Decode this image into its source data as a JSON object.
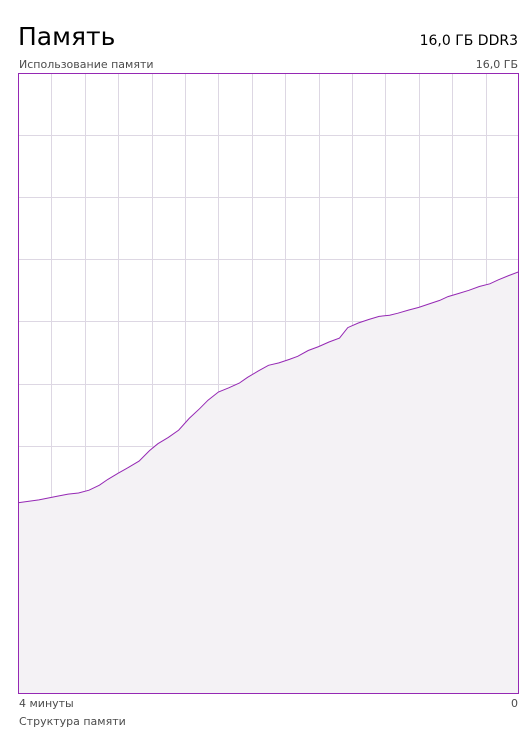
{
  "header": {
    "title": "Память",
    "spec": "16,0 ГБ DDR3"
  },
  "graph": {
    "label_top_left": "Использование памяти",
    "label_top_right": "16,0 ГБ",
    "label_bottom_left": "4 минуты",
    "label_bottom_right": "0",
    "line_color": "#9528b4",
    "fill_color": "#f4f2f5",
    "border_color": "#9528b4",
    "grid_color": "#ddd7e3"
  },
  "footer": {
    "section_label": "Структура памяти"
  },
  "chart_data": {
    "type": "area",
    "x_range": [
      240,
      0
    ],
    "ylim": [
      0,
      16
    ],
    "x_seconds_ago": [
      240,
      230,
      221,
      216,
      211,
      206,
      201,
      197,
      192,
      187,
      182,
      177,
      173,
      168,
      163,
      158,
      153,
      149,
      144,
      139,
      134,
      130,
      125,
      120,
      115,
      110,
      106,
      101,
      96,
      91,
      86,
      82,
      77,
      72,
      67,
      62,
      58,
      53,
      48,
      43,
      38,
      34,
      29,
      24,
      19,
      14,
      10,
      5,
      0
    ],
    "y_used_gb": [
      4.93,
      5.0,
      5.1,
      5.15,
      5.18,
      5.25,
      5.38,
      5.53,
      5.69,
      5.84,
      6.0,
      6.27,
      6.45,
      6.61,
      6.8,
      7.1,
      7.35,
      7.57,
      7.78,
      7.89,
      8.01,
      8.16,
      8.32,
      8.47,
      8.53,
      8.62,
      8.7,
      8.85,
      8.95,
      9.07,
      9.17,
      9.44,
      9.56,
      9.65,
      9.73,
      9.76,
      9.81,
      9.89,
      9.96,
      10.05,
      10.14,
      10.24,
      10.32,
      10.4,
      10.5,
      10.57,
      10.67,
      10.78,
      10.88
    ]
  }
}
